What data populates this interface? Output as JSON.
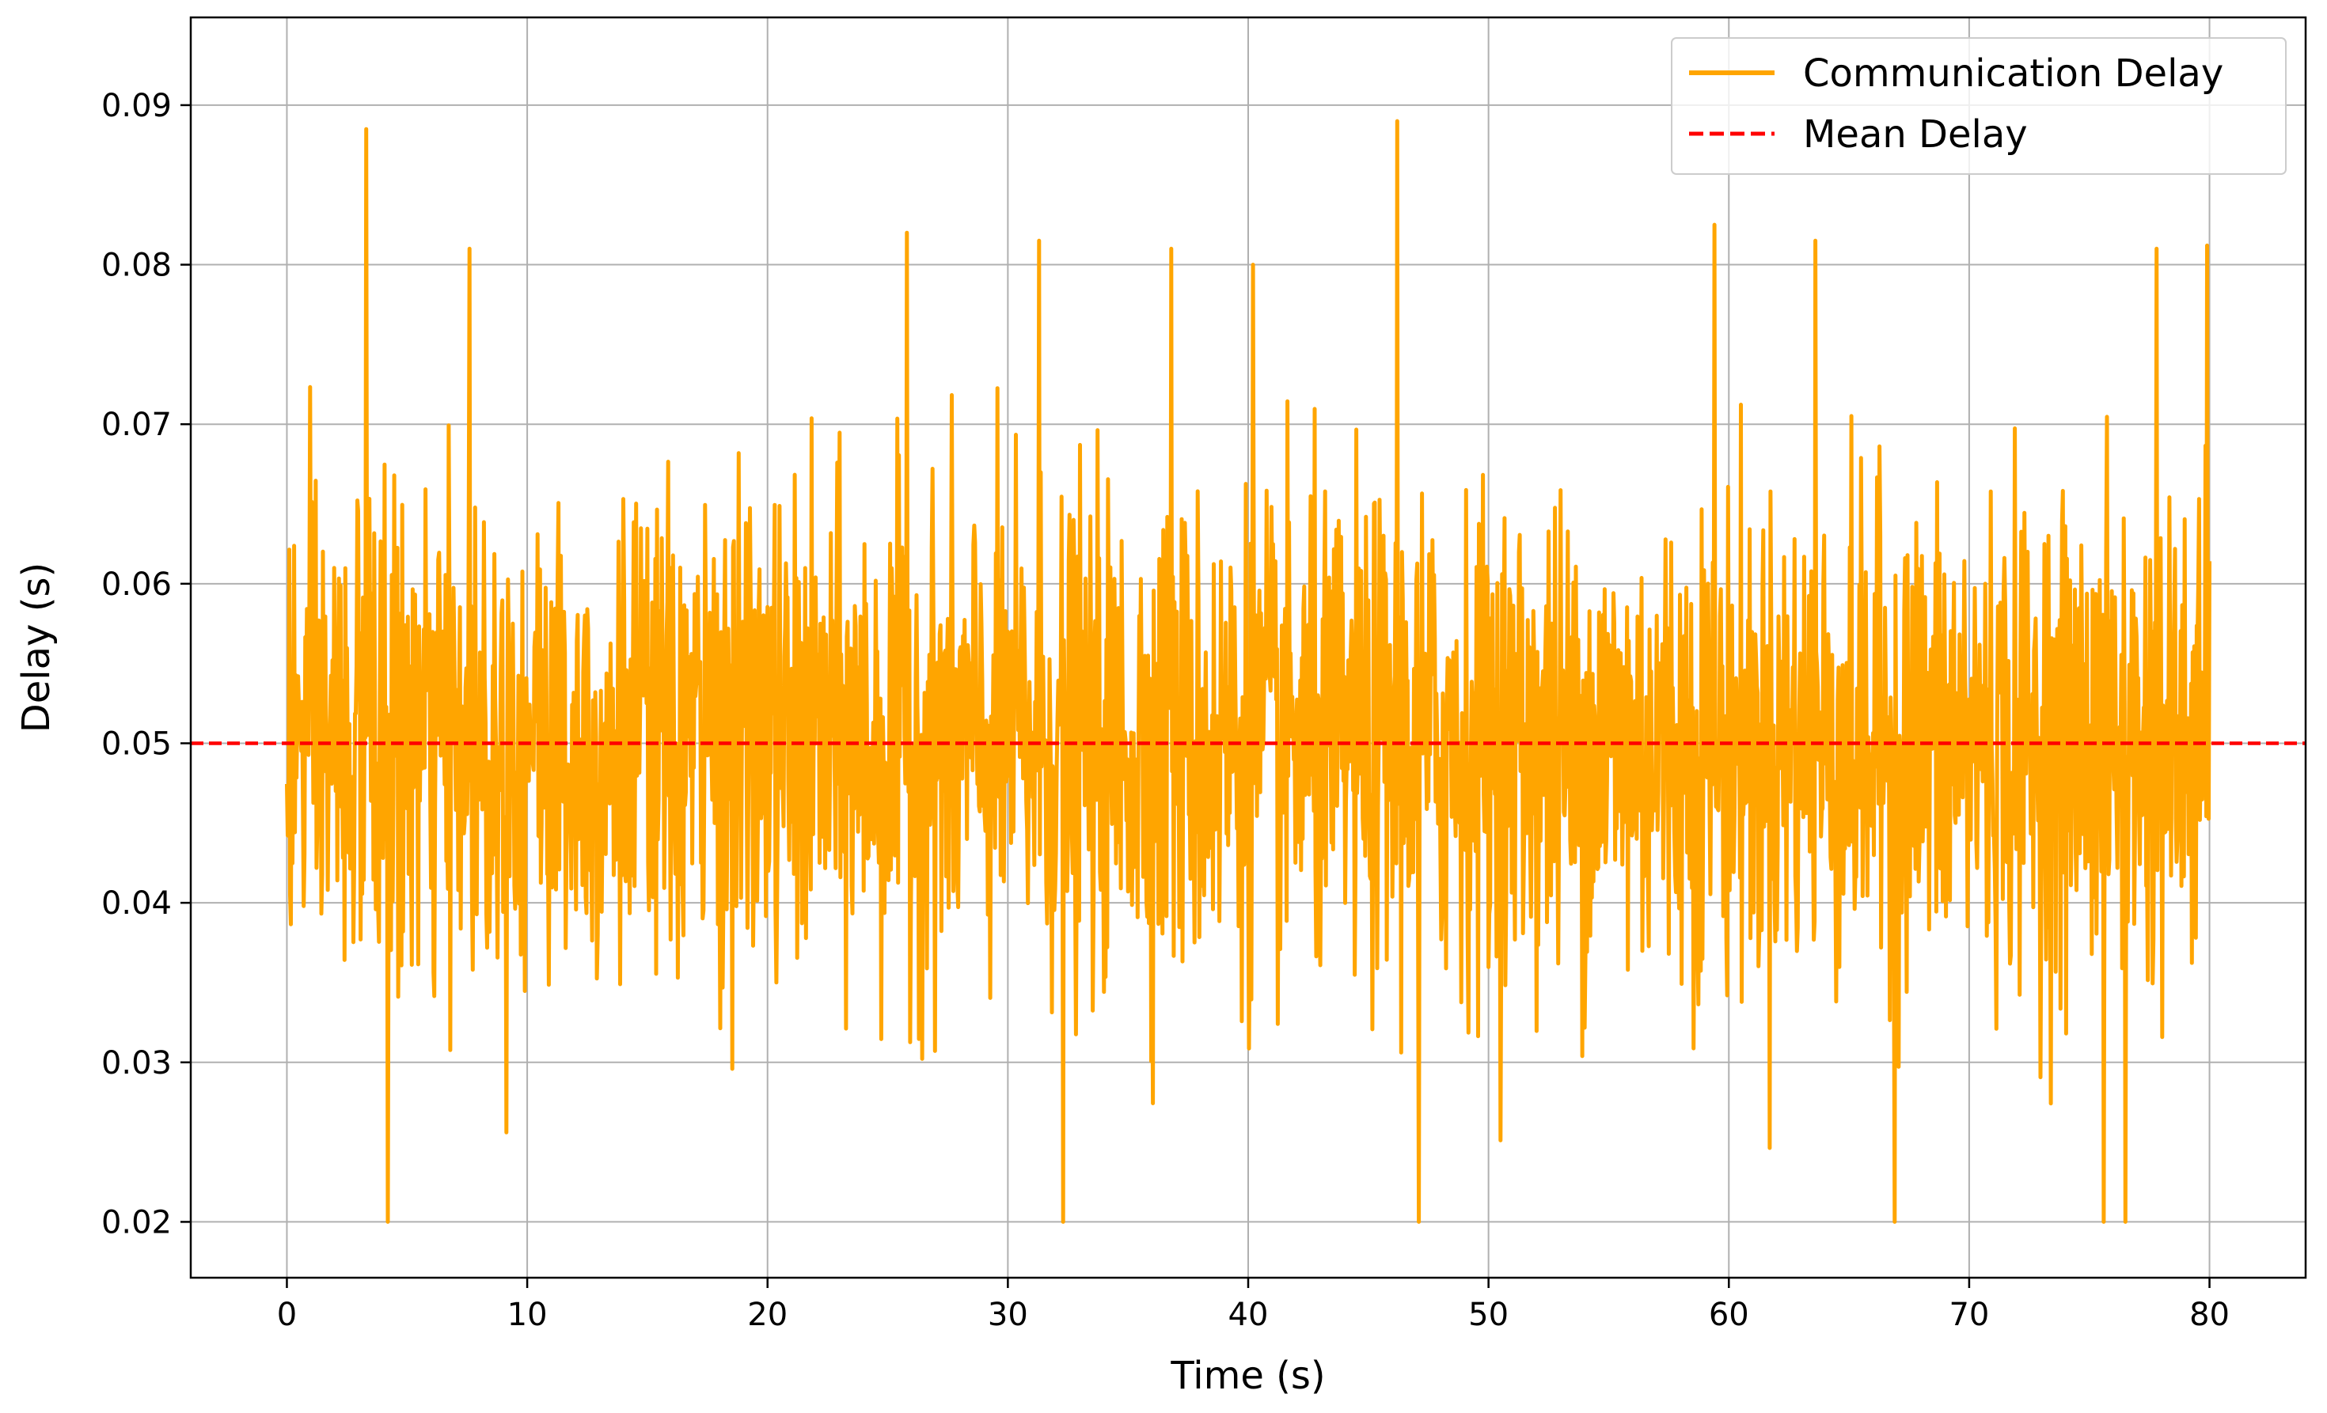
{
  "chart_data": {
    "type": "line",
    "title": "",
    "xlabel": "Time (s)",
    "ylabel": "Delay (s)",
    "xlim": [
      -4,
      84
    ],
    "ylim": [
      0.0165,
      0.0955
    ],
    "x_ticks": [
      0,
      10,
      20,
      30,
      40,
      50,
      60,
      70,
      80
    ],
    "x_tick_labels": [
      "0",
      "10",
      "20",
      "30",
      "40",
      "50",
      "60",
      "70",
      "80"
    ],
    "y_ticks": [
      0.02,
      0.03,
      0.04,
      0.05,
      0.06,
      0.07,
      0.08,
      0.09
    ],
    "y_tick_labels": [
      "0.02",
      "0.03",
      "0.04",
      "0.05",
      "0.06",
      "0.07",
      "0.08",
      "0.09"
    ],
    "grid": true,
    "legend_position": "top-right",
    "series": [
      {
        "name": "Communication Delay",
        "color": "#ffa500",
        "style": "solid",
        "x_range": [
          0,
          80
        ],
        "mean": 0.05,
        "typical_band": [
          0.035,
          0.065
        ],
        "min": 0.02,
        "max": 0.089,
        "notable_peaks": [
          {
            "x": 3.3,
            "y": 0.0885
          },
          {
            "x": 7.6,
            "y": 0.081
          },
          {
            "x": 25.8,
            "y": 0.082
          },
          {
            "x": 31.3,
            "y": 0.0815
          },
          {
            "x": 36.8,
            "y": 0.081
          },
          {
            "x": 40.2,
            "y": 0.08
          },
          {
            "x": 46.2,
            "y": 0.089
          },
          {
            "x": 59.4,
            "y": 0.0825
          },
          {
            "x": 63.6,
            "y": 0.0815
          },
          {
            "x": 77.8,
            "y": 0.081
          },
          {
            "x": 79.9,
            "y": 0.0812
          }
        ],
        "notable_troughs": [
          {
            "x": 4.2,
            "y": 0.02
          },
          {
            "x": 32.3,
            "y": 0.02
          },
          {
            "x": 47.1,
            "y": 0.02
          },
          {
            "x": 66.9,
            "y": 0.02
          },
          {
            "x": 75.6,
            "y": 0.02
          },
          {
            "x": 76.5,
            "y": 0.02
          }
        ]
      },
      {
        "name": "Mean Delay",
        "color": "#ff0000",
        "style": "dashed",
        "y": 0.05
      }
    ]
  }
}
